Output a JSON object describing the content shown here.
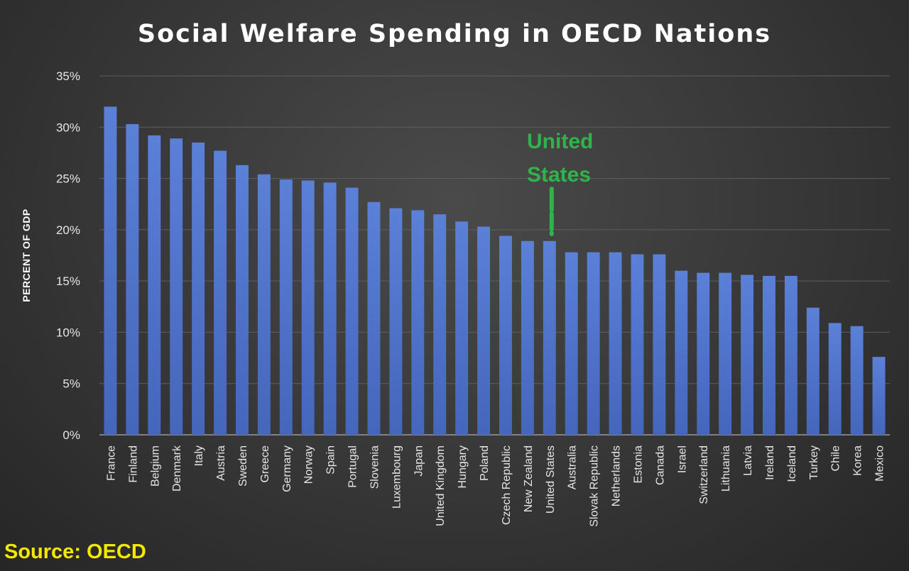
{
  "chart_data": {
    "type": "bar",
    "title": "Social Welfare Spending in OECD Nations",
    "ylabel": "PERCENT OF GDP",
    "xlabel": "",
    "ylim": [
      0,
      35
    ],
    "y_ticks": [
      "0%",
      "5%",
      "10%",
      "15%",
      "20%",
      "25%",
      "30%",
      "35%"
    ],
    "grid": true,
    "categories": [
      "France",
      "Finland",
      "Belgium",
      "Denmark",
      "Italy",
      "Austria",
      "Sweden",
      "Greece",
      "Germany",
      "Norway",
      "Spain",
      "Portugal",
      "Slovenia",
      "Luxembourg",
      "Japan",
      "United Kingdom",
      "Hungary",
      "Poland",
      "Czech Republic",
      "New Zealand",
      "United States",
      "Australia",
      "Slovak Republic",
      "Netherlands",
      "Estonia",
      "Canada",
      "Israel",
      "Switzerland",
      "Lithuania",
      "Latvia",
      "Ireland",
      "Iceland",
      "Turkey",
      "Chile",
      "Korea",
      "Mexico"
    ],
    "values": [
      32.0,
      30.3,
      29.2,
      28.9,
      28.5,
      27.7,
      26.3,
      25.4,
      24.9,
      24.8,
      24.6,
      24.1,
      22.7,
      22.1,
      21.9,
      21.5,
      20.8,
      20.3,
      19.4,
      18.9,
      18.9,
      17.8,
      17.8,
      17.8,
      17.6,
      17.6,
      16.0,
      15.8,
      15.8,
      15.6,
      15.5,
      15.5,
      12.4,
      10.9,
      10.6,
      7.6
    ],
    "bar_color": "#4f73c9",
    "annotation": {
      "text_line1": "United",
      "text_line2": "States",
      "target": "United States",
      "color": "#2fb34a"
    }
  },
  "source": {
    "text": "Source: OECD",
    "color": "#f2e800"
  }
}
